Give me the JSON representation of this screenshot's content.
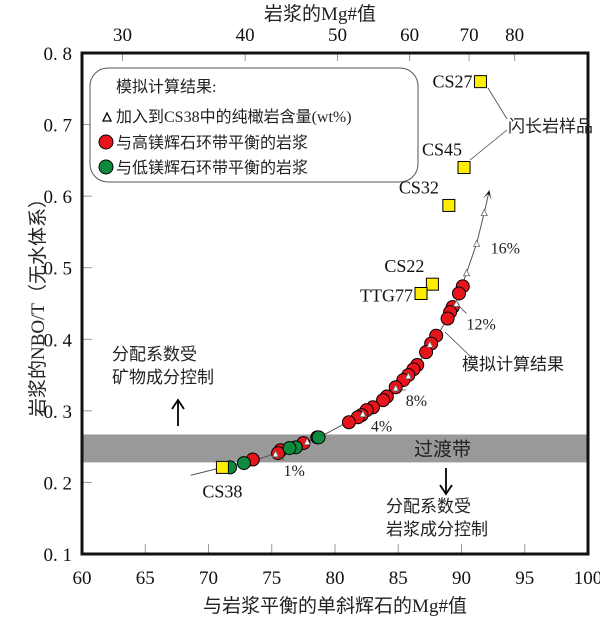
{
  "chart_data": {
    "type": "scatter",
    "xlabel": "与岩浆平衡的单斜辉石的Mg#值",
    "ylabel": "岩浆的NBO/T（无水体系）",
    "top_xlabel": "岩浆的Mg#值",
    "xlim": [
      60,
      100
    ],
    "ylim": [
      0.1,
      0.8
    ],
    "x_ticks": [
      60,
      65,
      70,
      75,
      80,
      85,
      90,
      95,
      100
    ],
    "y_ticks": [
      0.1,
      0.2,
      0.3,
      0.4,
      0.5,
      0.6,
      0.7,
      0.8
    ],
    "y_tick_labels": [
      "0. 1",
      "0. 2",
      "0. 3",
      "0. 4",
      "0. 5",
      "0. 6",
      "0. 7",
      "0. 8"
    ],
    "top_ticks": [
      {
        "label": "30",
        "cpx_mg": 63.2
      },
      {
        "label": "40",
        "cpx_mg": 72.9
      },
      {
        "label": "50",
        "cpx_mg": 80.2
      },
      {
        "label": "60",
        "cpx_mg": 85.9
      },
      {
        "label": "70",
        "cpx_mg": 90.6
      },
      {
        "label": "80",
        "cpx_mg": 94.2
      }
    ],
    "grid": false,
    "transition_band": {
      "label": "过渡带",
      "y_range": [
        0.228,
        0.267
      ],
      "color": "#999999"
    },
    "legend": {
      "placement": "top-left",
      "title": "模拟计算结果:",
      "entries": [
        {
          "label": "加入到CS38中的纯橄岩含量(wt%)",
          "marker": "triangle"
        },
        {
          "label": "与高镁辉石环带平衡的岩浆",
          "marker": "circle",
          "color": "#e8141b"
        },
        {
          "label": "与低镁辉石环带平衡的岩浆",
          "marker": "circle",
          "color": "#0f8a3c"
        }
      ]
    },
    "series": [
      {
        "name": "与高镁辉石环带平衡的岩浆",
        "color": "#e8141b",
        "points": [
          [
            90.1,
            0.474
          ],
          [
            89.8,
            0.464
          ],
          [
            89.3,
            0.445
          ],
          [
            89.1,
            0.438
          ],
          [
            88.9,
            0.429
          ],
          [
            88.0,
            0.405
          ],
          [
            87.6,
            0.394
          ],
          [
            87.2,
            0.382
          ],
          [
            86.5,
            0.364
          ],
          [
            86.2,
            0.358
          ],
          [
            85.8,
            0.35
          ],
          [
            85.4,
            0.343
          ],
          [
            84.8,
            0.333
          ],
          [
            84.1,
            0.32
          ],
          [
            83.8,
            0.315
          ],
          [
            83.0,
            0.305
          ],
          [
            82.5,
            0.301
          ],
          [
            82.1,
            0.294
          ],
          [
            81.8,
            0.291
          ],
          [
            81.1,
            0.284
          ],
          [
            78.6,
            0.263
          ],
          [
            77.5,
            0.255
          ],
          [
            75.7,
            0.245
          ],
          [
            75.5,
            0.241
          ],
          [
            73.5,
            0.232
          ]
        ]
      },
      {
        "name": "与低镁辉石环带平衡的岩浆",
        "color": "#0f8a3c",
        "points": [
          [
            78.7,
            0.263
          ],
          [
            76.9,
            0.249
          ],
          [
            76.4,
            0.248
          ],
          [
            72.8,
            0.227
          ],
          [
            71.7,
            0.221
          ]
        ]
      }
    ],
    "model_curve": {
      "label": "模拟计算结果",
      "points": [
        [
          68.6,
          0.21
        ],
        [
          71.1,
          0.221
        ],
        [
          74.0,
          0.233
        ],
        [
          77.0,
          0.25
        ],
        [
          79.5,
          0.27
        ],
        [
          81.8,
          0.292
        ],
        [
          84.0,
          0.318
        ],
        [
          86.0,
          0.352
        ],
        [
          88.0,
          0.402
        ],
        [
          89.5,
          0.448
        ],
        [
          90.4,
          0.493
        ],
        [
          91.2,
          0.534
        ],
        [
          91.8,
          0.577
        ],
        [
          92.2,
          0.608
        ]
      ],
      "triangles": [
        [
          75.3,
          0.24
        ],
        [
          77.8,
          0.257
        ],
        [
          82.2,
          0.296
        ],
        [
          84.8,
          0.332
        ],
        [
          85.8,
          0.349
        ],
        [
          87.5,
          0.393
        ],
        [
          89.6,
          0.45
        ],
        [
          90.4,
          0.493
        ],
        [
          91.2,
          0.534
        ],
        [
          91.8,
          0.577
        ]
      ],
      "pct_labels": [
        {
          "text": "1%",
          "at": [
            75.3,
            0.24
          ]
        },
        {
          "text": "4%",
          "at": [
            82.2,
            0.296
          ]
        },
        {
          "text": "8%",
          "at": [
            84.8,
            0.332
          ]
        },
        {
          "text": "12%",
          "at": [
            89.6,
            0.45
          ]
        },
        {
          "text": "16%",
          "at": [
            91.2,
            0.534
          ]
        }
      ]
    },
    "samples": {
      "color": "#ffee00",
      "group_label": "闪长岩样品",
      "points": [
        {
          "name": "CS27",
          "x": 91.5,
          "y": 0.76
        },
        {
          "name": "CS45",
          "x": 90.2,
          "y": 0.64
        },
        {
          "name": "CS32",
          "x": 89.0,
          "y": 0.587
        },
        {
          "name": "CS22",
          "x": 87.7,
          "y": 0.477
        },
        {
          "name": "TTG77",
          "x": 86.8,
          "y": 0.464
        },
        {
          "name": "CS38",
          "x": 71.1,
          "y": 0.221
        }
      ]
    },
    "annotations": {
      "upper_left": [
        "分配系数受",
        "矿物成分控制"
      ],
      "lower_right": [
        "分配系数受",
        "岩浆成分控制"
      ]
    }
  }
}
